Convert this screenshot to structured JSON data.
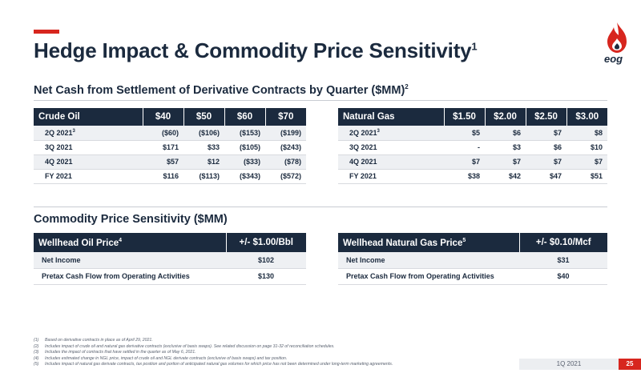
{
  "header": {
    "title": "Hedge Impact & Commodity Price Sensitivity",
    "title_footnote": "1",
    "logo_text": "eog"
  },
  "derivatives_section": {
    "title": "Net Cash from Settlement of Derivative Contracts by Quarter ($MM)",
    "title_footnote": "2",
    "crude_oil_table": {
      "headers": [
        "Crude Oil",
        "$40",
        "$50",
        "$60",
        "$70"
      ],
      "rows": [
        {
          "label": "2Q 2021",
          "footnote": "3",
          "values": [
            "($60)",
            "($106)",
            "($153)",
            "($199)"
          ]
        },
        {
          "label": "3Q 2021",
          "footnote": "",
          "values": [
            "$171",
            "$33",
            "($105)",
            "($243)"
          ]
        },
        {
          "label": "4Q 2021",
          "footnote": "",
          "values": [
            "$57",
            "$12",
            "($33)",
            "($78)"
          ]
        },
        {
          "label": "FY 2021",
          "footnote": "",
          "values": [
            "$116",
            "($113)",
            "($343)",
            "($572)"
          ]
        }
      ]
    },
    "natural_gas_table": {
      "headers": [
        "Natural Gas",
        "$1.50",
        "$2.00",
        "$2.50",
        "$3.00"
      ],
      "rows": [
        {
          "label": "2Q 2021",
          "footnote": "3",
          "values": [
            "$5",
            "$6",
            "$7",
            "$8"
          ]
        },
        {
          "label": "3Q 2021",
          "footnote": "",
          "values": [
            "-",
            "$3",
            "$6",
            "$10"
          ]
        },
        {
          "label": "4Q 2021",
          "footnote": "",
          "values": [
            "$7",
            "$7",
            "$7",
            "$7"
          ]
        },
        {
          "label": "FY 2021",
          "footnote": "",
          "values": [
            "$38",
            "$42",
            "$47",
            "$51"
          ]
        }
      ]
    }
  },
  "sensitivity_section": {
    "title": "Commodity Price Sensitivity ($MM)",
    "oil_table": {
      "header_label": "Wellhead Oil Price",
      "header_footnote": "4",
      "header_value": "+/- $1.00/Bbl",
      "rows": [
        {
          "label": "Net Income",
          "value": "$102"
        },
        {
          "label": "Pretax Cash Flow from Operating Activities",
          "value": "$130"
        }
      ]
    },
    "gas_table": {
      "header_label": "Wellhead Natural Gas Price",
      "header_footnote": "5",
      "header_value": "+/- $0.10/Mcf",
      "rows": [
        {
          "label": "Net Income",
          "value": "$31"
        },
        {
          "label": "Pretax Cash Flow from Operating Activities",
          "value": "$40"
        }
      ]
    }
  },
  "footnotes": [
    {
      "num": "(1)",
      "text": "Based on derivative contracts in place as of April 29, 2021."
    },
    {
      "num": "(2)",
      "text": "Includes impact of crude oil and natural gas derivative contracts (exclusive of basis swaps). See related discussion on page 31-32 of reconciliation schedules."
    },
    {
      "num": "(3)",
      "text": "Includes the impact of contracts that have settled in the quarter as of May 6, 2021."
    },
    {
      "num": "(4)",
      "text": "Includes estimated change in NGL price, impact of crude oil and NGL derivate contracts (exclusive of basis swaps) and tax position."
    },
    {
      "num": "(5)",
      "text": "Includes impact of natural gas derivate contracts, tax position and portion of anticipated natural gas volumes for which price has not been determined under long-term marketing agreements."
    }
  ],
  "footer": {
    "period": "1Q 2021",
    "page_number": "25"
  },
  "colors": {
    "navy": "#1b2a3e",
    "accent_red": "#d7261e",
    "row_stripe": "#eef0f3"
  }
}
